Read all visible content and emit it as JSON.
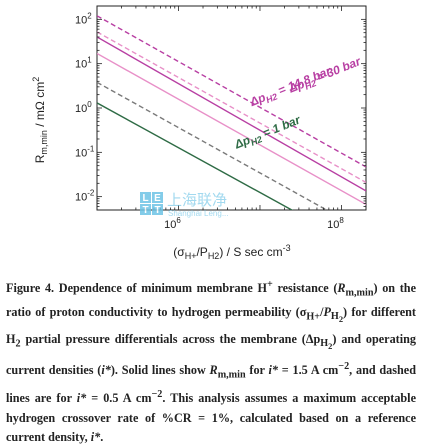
{
  "chart_data": {
    "type": "line",
    "x_scale": "log",
    "y_scale": "log",
    "xlim": [
      100000.0,
      200000000.0
    ],
    "ylim": [
      0.005,
      200
    ],
    "xticks": [
      1000000.0,
      100000000.0
    ],
    "xtick_labels": [
      [
        "10",
        "6"
      ],
      [
        "10",
        "8"
      ]
    ],
    "yticks": [
      0.01,
      0.1,
      1,
      10,
      100
    ],
    "ytick_labels": [
      [
        "10",
        "-2"
      ],
      [
        "10",
        "-1"
      ],
      [
        "10",
        "0"
      ],
      [
        "10",
        "1"
      ],
      [
        "10",
        "2"
      ]
    ],
    "xlabel": {
      "pre": "(σ",
      "sub1": "H+",
      "mid": "/P",
      "sub2": "H2",
      "post": ") / S sec cm",
      "sup": "-3"
    },
    "ylabel": {
      "main": "R",
      "sub": "m,min",
      "post": " / mΩ cm",
      "sup": "2"
    },
    "series": [
      {
        "pressure_bar": 30,
        "current_density": 1.5,
        "style": "solid",
        "color": "#b83fa3",
        "x": [
          100000.0,
          200000000.0
        ],
        "y": [
          40,
          0.0135
        ]
      },
      {
        "pressure_bar": 30,
        "current_density": 0.5,
        "style": "dashed",
        "color": "#b83fa3",
        "x": [
          100000.0,
          200000000.0
        ],
        "y": [
          120,
          0.047
        ]
      },
      {
        "pressure_bar": 14.8,
        "current_density": 1.5,
        "style": "solid",
        "color": "#e890c8",
        "x": [
          100000.0,
          200000000.0
        ],
        "y": [
          17,
          0.0067
        ]
      },
      {
        "pressure_bar": 14.8,
        "current_density": 0.5,
        "style": "dashed",
        "color": "#e890c8",
        "x": [
          100000.0,
          200000000.0
        ],
        "y": [
          52,
          0.021
        ]
      },
      {
        "pressure_bar": 1,
        "current_density": 1.5,
        "style": "solid",
        "color": "#2e6b45",
        "x": [
          100000.0,
          200000000.0
        ],
        "y": [
          1.3,
          0.0006
        ]
      },
      {
        "pressure_bar": 1,
        "current_density": 0.5,
        "style": "dashed",
        "color": "#7a7a7a",
        "x": [
          100000.0,
          200000000.0
        ],
        "y": [
          3.8,
          0.0016
        ]
      }
    ],
    "annotations": [
      {
        "id": "p30",
        "x": 24000000.0,
        "y": 2.2,
        "rotation": -22,
        "color": "#b83fa3",
        "prefix": "Δp",
        "sub": "H2",
        "suffix": " = 30 bar"
      },
      {
        "id": "p14",
        "x": 8000000.0,
        "y": 1.1,
        "rotation": -22,
        "color": "#b83fa3",
        "prefix": "Δp",
        "sub": "H2",
        "suffix": " = 14.8 bar"
      },
      {
        "id": "p1",
        "x": 5200000.0,
        "y": 0.12,
        "rotation": -22,
        "color": "#2e6b45",
        "prefix": "Δp",
        "sub": "H2",
        "suffix": " = 1 bar"
      }
    ]
  },
  "watermark": {
    "box_letters": [
      "L",
      "E",
      "T",
      "T"
    ],
    "chinese": "上海联净",
    "english": "Shanghai Leng..."
  },
  "caption": {
    "p1": "Figure 4. Dependence of minimum membrane H",
    "p1_sup": "+",
    "p2": " resistance (",
    "R": "R",
    "R_sub": "m,min",
    "p3": ") on the ratio of proton conductivity to hydrogen permeability (",
    "sigma": "σ",
    "sigma_sub": "H+",
    "slash": "/",
    "P": "P",
    "P_sub": "H",
    "P_subsub": "2",
    "p4": ") for different H",
    "H2_sub": "2",
    "p5": " partial pressure differentials across the membrane (",
    "delta": "Δp",
    "delta_sub": "H",
    "delta_subsub": "2",
    "p6": ") and operating current densities (",
    "istar1": "i*",
    "p7": "). Solid lines show ",
    "R2": "R",
    "R2_sub": "m,min",
    "p8": " for ",
    "istar2": "i*",
    "p9": " = 1.5 A cm",
    "p9_sup": "−2",
    "p10": ", and dashed lines are for ",
    "istar3": "i*",
    "p11": " = 0.5 A cm",
    "p11_sup": "−2",
    "p12": ". This analysis assumes a maximum acceptable hydrogen crossover rate of %CR = 1%, calculated based on a reference current density, ",
    "istar4": "i*",
    "p13": "."
  }
}
